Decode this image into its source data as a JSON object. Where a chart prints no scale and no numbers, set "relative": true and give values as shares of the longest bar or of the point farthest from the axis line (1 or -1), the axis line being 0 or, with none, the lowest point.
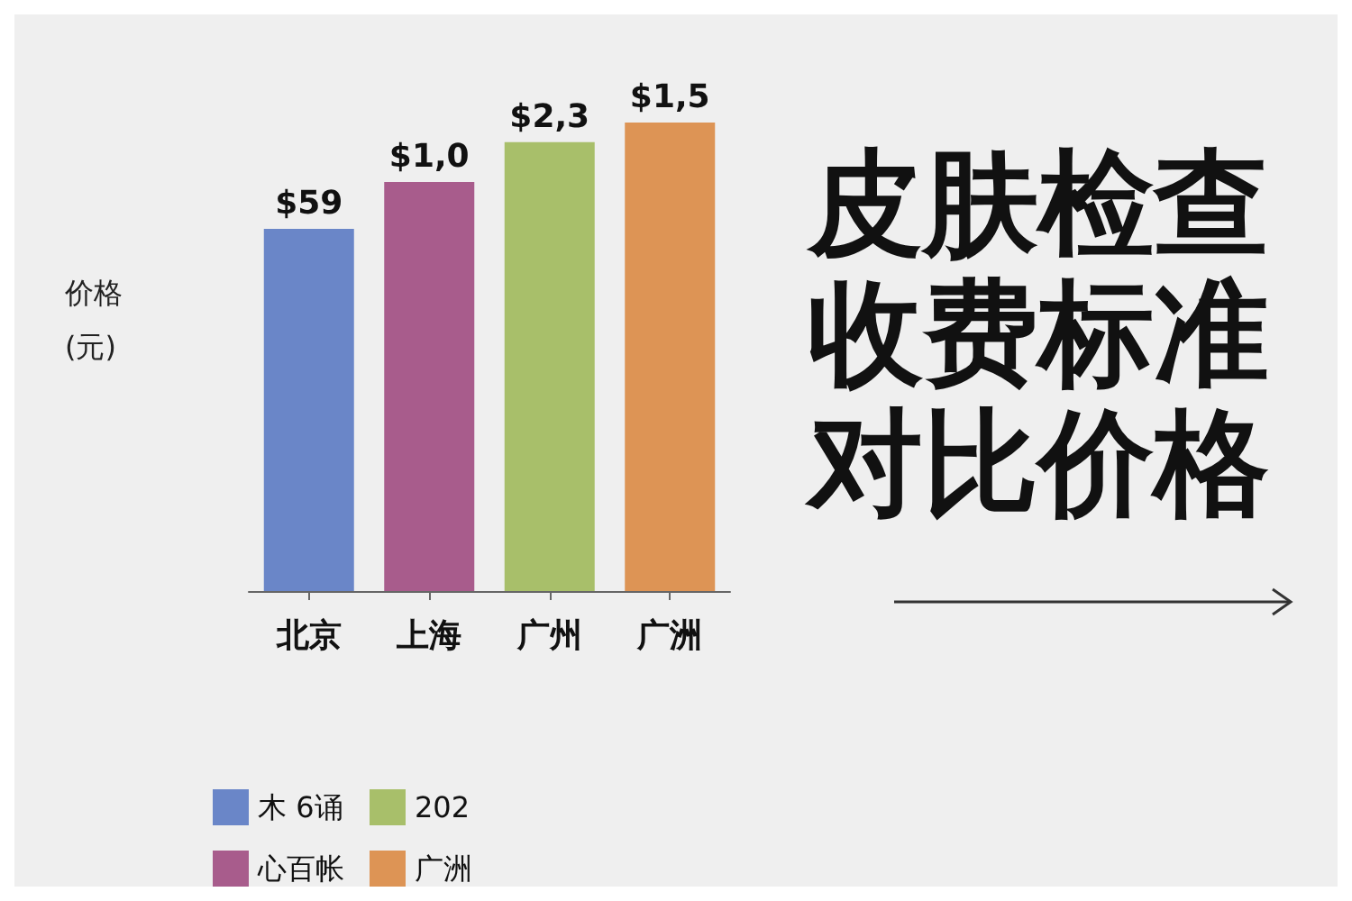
{
  "chart_data": {
    "type": "bar",
    "title": "皮肤检查收费标准对比价格",
    "ylabel": "价格 (元)",
    "relative": true,
    "stacked": true,
    "categories": [
      "北京",
      "上海",
      "广州",
      "广洲"
    ],
    "series": [
      {
        "name": "木 6诵",
        "color": "#6a86c8",
        "values": [
          0.773,
          null,
          null,
          null
        ]
      },
      {
        "name": "心百帐",
        "color": "#a85c8c",
        "values": [
          null,
          0.873,
          null,
          null
        ]
      },
      {
        "name": "202",
        "color": "#a8bf6a",
        "values": [
          null,
          null,
          0.958,
          null
        ]
      },
      {
        "name": "广洲",
        "color": "#dd9455",
        "values": [
          null,
          null,
          null,
          1
        ]
      }
    ],
    "annotations": [
      "$59",
      "$1,0",
      "$2,3",
      "$1,5"
    ],
    "legend": "bottom left",
    "grid": false
  }
}
